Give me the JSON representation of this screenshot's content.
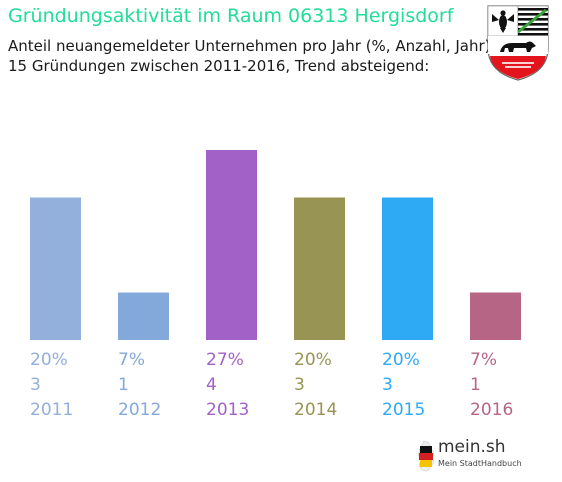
{
  "header": {
    "title": "Gründungsaktivität im Raum 06313 Hergisdorf",
    "subtitle_line1": "Anteil neuangemeldeter Unternehmen pro Jahr (%, Anzahl, Jahr)",
    "subtitle_line2": "15 Gründungen zwischen 2011-2016, Trend absteigend:"
  },
  "chart_data": {
    "type": "bar",
    "categories": [
      "2011",
      "2012",
      "2013",
      "2014",
      "2015",
      "2016"
    ],
    "values": [
      3,
      1,
      4,
      3,
      3,
      1
    ],
    "percent_labels": [
      "20%",
      "7%",
      "27%",
      "20%",
      "20%",
      "7%"
    ],
    "colors": [
      "#93afdb",
      "#83a9db",
      "#a261c6",
      "#979454",
      "#2eaaf5",
      "#b76584"
    ],
    "ylim": [
      0,
      4
    ],
    "grid": false,
    "legend": "none"
  },
  "logo": {
    "text": "mein.sh",
    "subtext": "Mein StadtHandbuch"
  },
  "crest": {
    "icon": "saxony-anhalt-coat-of-arms-icon",
    "colors": {
      "black": "#111111",
      "gold": "#f2c500",
      "red": "#e3141c",
      "white": "#ffffff"
    }
  }
}
